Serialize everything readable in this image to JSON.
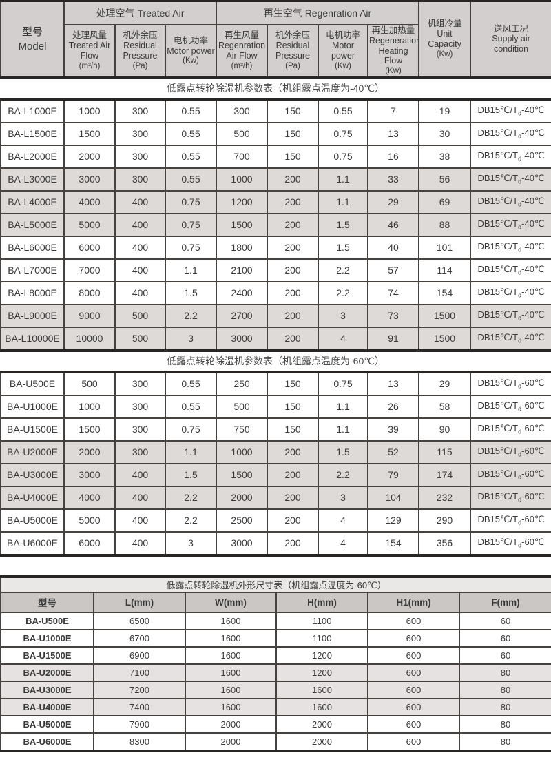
{
  "colors": {
    "header_bg": "#d2cfce",
    "row_shade": "#dedad8",
    "dim_title_bg": "#eae8e7",
    "dim_header_bg": "#cac7c5",
    "dim_row_shade": "#e5e2e1",
    "border_thin": "#45423f",
    "border_thick": "#272625",
    "text": "#3a3a3a"
  },
  "spec_table": {
    "model_header": [
      "型号",
      "Model"
    ],
    "treated_group": "处理空气 Treated Air",
    "regen_group": "再生空气  Regenration Air",
    "sub_columns": [
      [
        "处理风量",
        "Treated Air",
        "Flow",
        "(m³/h)"
      ],
      [
        "机外余压",
        "Residual",
        "Pressure",
        "(Pa)"
      ],
      [
        "电机功率",
        "Motor power",
        "(Kw)"
      ],
      [
        "再生风量",
        "Regenration",
        "Air Flow",
        "(m³/h)"
      ],
      [
        "机外余压",
        "Residual",
        "Pressure",
        "(Pa)"
      ],
      [
        "电机功率",
        "Motor power",
        "(Kw)"
      ],
      [
        "再生加热量",
        "Regeneration",
        "Heating Flow",
        "(Kw)"
      ]
    ],
    "unit_capacity_header": [
      "机组冷量",
      "Unit",
      "Capacity",
      "(Kw)"
    ],
    "supply_header": [
      "送风工况",
      "Supply air",
      "condition"
    ],
    "sections": [
      {
        "title": "低露点转轮除湿机参数表（机组露点温度为-40℃）",
        "supply": {
          "prefix": "DB15℃/T",
          "sub": "d",
          "suffix": "-40℃"
        },
        "rows": [
          {
            "model": "BA-L1000E",
            "values": [
              "1000",
              "300",
              "0.55",
              "300",
              "150",
              "0.55",
              "7",
              "19"
            ],
            "shaded": false
          },
          {
            "model": "BA-L1500E",
            "values": [
              "1500",
              "300",
              "0.55",
              "500",
              "150",
              "0.75",
              "13",
              "30"
            ],
            "shaded": false
          },
          {
            "model": "BA-L2000E",
            "values": [
              "2000",
              "300",
              "0.55",
              "700",
              "150",
              "0.75",
              "16",
              "38"
            ],
            "shaded": false
          },
          {
            "model": "BA-L3000E",
            "values": [
              "3000",
              "300",
              "0.55",
              "1000",
              "200",
              "1.1",
              "33",
              "56"
            ],
            "shaded": true
          },
          {
            "model": "BA-L4000E",
            "values": [
              "4000",
              "400",
              "0.75",
              "1200",
              "200",
              "1.1",
              "29",
              "69"
            ],
            "shaded": true
          },
          {
            "model": "BA-L5000E",
            "values": [
              "5000",
              "400",
              "0.75",
              "1500",
              "200",
              "1.5",
              "46",
              "88"
            ],
            "shaded": true
          },
          {
            "model": "BA-L6000E",
            "values": [
              "6000",
              "400",
              "0.75",
              "1800",
              "200",
              "1.5",
              "40",
              "101"
            ],
            "shaded": false
          },
          {
            "model": "BA-L7000E",
            "values": [
              "7000",
              "400",
              "1.1",
              "2100",
              "200",
              "2.2",
              "57",
              "114"
            ],
            "shaded": false
          },
          {
            "model": "BA-L8000E",
            "values": [
              "8000",
              "400",
              "1.5",
              "2400",
              "200",
              "2.2",
              "74",
              "154"
            ],
            "shaded": false
          },
          {
            "model": "BA-L9000E",
            "values": [
              "9000",
              "500",
              "2.2",
              "2700",
              "200",
              "3",
              "73",
              "1500"
            ],
            "shaded": true
          },
          {
            "model": "BA-L10000E",
            "values": [
              "10000",
              "500",
              "3",
              "3000",
              "200",
              "4",
              "91",
              "1500"
            ],
            "shaded": true
          }
        ]
      },
      {
        "title": "低露点转轮除湿机参数表（机组露点温度为-60℃）",
        "supply": {
          "prefix": "DB15℃/T",
          "sub": "d",
          "suffix": "-60℃"
        },
        "rows": [
          {
            "model": "BA-U500E",
            "values": [
              "500",
              "300",
              "0.55",
              "250",
              "150",
              "0.75",
              "13",
              "29"
            ],
            "shaded": false
          },
          {
            "model": "BA-U1000E",
            "values": [
              "1000",
              "300",
              "0.55",
              "500",
              "150",
              "1.1",
              "26",
              "58"
            ],
            "shaded": false
          },
          {
            "model": "BA-U1500E",
            "values": [
              "1500",
              "300",
              "0.75",
              "750",
              "150",
              "1.1",
              "39",
              "90"
            ],
            "shaded": false
          },
          {
            "model": "BA-U2000E",
            "values": [
              "2000",
              "300",
              "1.1",
              "1000",
              "200",
              "1.5",
              "52",
              "115"
            ],
            "shaded": true
          },
          {
            "model": "BA-U3000E",
            "values": [
              "3000",
              "400",
              "1.5",
              "1500",
              "200",
              "2.2",
              "79",
              "174"
            ],
            "shaded": true
          },
          {
            "model": "BA-U4000E",
            "values": [
              "4000",
              "400",
              "2.2",
              "2000",
              "200",
              "3",
              "104",
              "232"
            ],
            "shaded": true
          },
          {
            "model": "BA-U5000E",
            "values": [
              "5000",
              "400",
              "2.2",
              "2500",
              "200",
              "4",
              "129",
              "290"
            ],
            "shaded": false
          },
          {
            "model": "BA-U6000E",
            "values": [
              "6000",
              "400",
              "3",
              "3000",
              "200",
              "4",
              "154",
              "356"
            ],
            "shaded": false
          }
        ]
      }
    ]
  },
  "dimension_table": {
    "title": "低露点转轮除湿机外形尺寸表（机组露点温度为-60℃）",
    "headers": [
      "型号",
      "L(mm)",
      "W(mm)",
      "H(mm)",
      "H1(mm)",
      "F(mm)"
    ],
    "rows": [
      {
        "model": "BA-U500E",
        "values": [
          "6500",
          "1600",
          "1100",
          "600",
          "60"
        ],
        "shaded": false
      },
      {
        "model": "BA-U1000E",
        "values": [
          "6700",
          "1600",
          "1100",
          "600",
          "60"
        ],
        "shaded": false
      },
      {
        "model": "BA-U1500E",
        "values": [
          "6900",
          "1600",
          "1200",
          "600",
          "60"
        ],
        "shaded": false
      },
      {
        "model": "BA-U2000E",
        "values": [
          "7100",
          "1600",
          "1200",
          "600",
          "80"
        ],
        "shaded": true
      },
      {
        "model": "BA-U3000E",
        "values": [
          "7200",
          "1600",
          "1600",
          "600",
          "80"
        ],
        "shaded": true
      },
      {
        "model": "BA-U4000E",
        "values": [
          "7400",
          "1600",
          "1600",
          "600",
          "80"
        ],
        "shaded": true
      },
      {
        "model": "BA-U5000E",
        "values": [
          "7900",
          "2000",
          "2000",
          "600",
          "80"
        ],
        "shaded": false
      },
      {
        "model": "BA-U6000E",
        "values": [
          "8300",
          "2000",
          "2000",
          "600",
          "80"
        ],
        "shaded": false
      }
    ]
  }
}
